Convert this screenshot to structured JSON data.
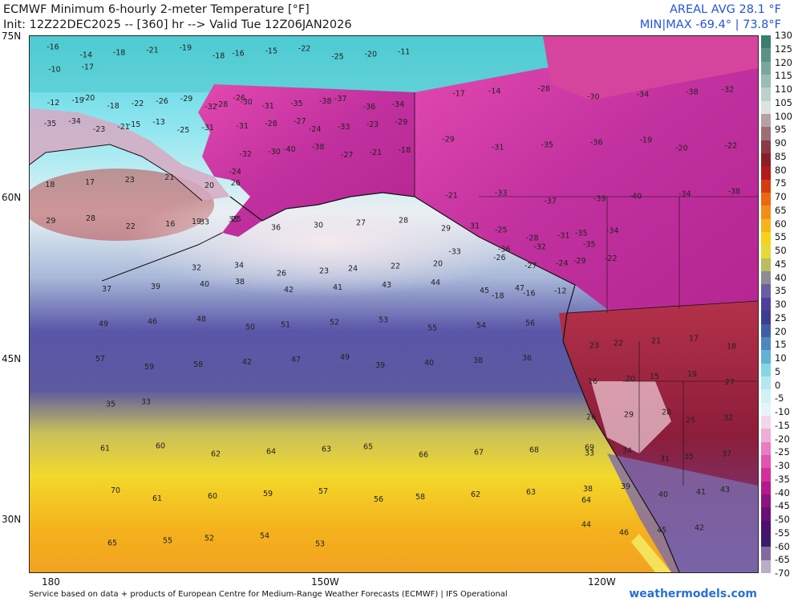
{
  "header": {
    "title": "ECMWF Minimum 6-hourly 2-meter Temperature [°F]",
    "init": "Init: 12Z22DEC2025 -- [360] hr --> Valid Tue 12Z06JAN2026",
    "areal_avg": "AREAL AVG 28.1 °F",
    "min_max": "MIN|MAX -69.4° | 73.8°F"
  },
  "lat_labels": [
    "75N",
    "60N",
    "45N",
    "30N"
  ],
  "lon_labels": [
    "180",
    "150W",
    "120W"
  ],
  "scale_labels": [
    "130",
    "125",
    "120",
    "115",
    "110",
    "105",
    "100",
    "95",
    "90",
    "85",
    "80",
    "75",
    "70",
    "65",
    "60",
    "55",
    "50",
    "45",
    "40",
    "35",
    "30",
    "25",
    "20",
    "15",
    "10",
    "5",
    "0",
    "-5",
    "-10",
    "-15",
    "-20",
    "-25",
    "-30",
    "-35",
    "-40",
    "-45",
    "-50",
    "-55",
    "-60",
    "-65",
    "-70"
  ],
  "scale_colors": [
    "#3d7d6f",
    "#5a9386",
    "#7aa79d",
    "#9bbcb6",
    "#bcd0cc",
    "#dde3e1",
    "#b6a0a6",
    "#9b6f78",
    "#8a3b46",
    "#8b1c2a",
    "#b21a1a",
    "#d83a12",
    "#ec6712",
    "#f28e18",
    "#f6b41a",
    "#f7d21d",
    "#e6d83a",
    "#b9bd5f",
    "#8d8c95",
    "#6a5fa3",
    "#4e3f9d",
    "#3d3d92",
    "#3f5ea6",
    "#4f86bd",
    "#63b2d3",
    "#86d6e6",
    "#b4e7ef",
    "#d2f1f5",
    "#e6f4f7",
    "#f2d7e9",
    "#eeaed7",
    "#e97dc1",
    "#e154ad",
    "#d42f9a",
    "#b31a8b",
    "#8d137f",
    "#6a0f76",
    "#4d106e",
    "#3c1a6a",
    "#7f6a9b",
    "#b9adc8"
  ],
  "footer": {
    "credit": "Service based on data + products of European Centre for Medium-Range Weather Forecasts (ECMWF) | IFS Operational",
    "brand": "weathermodels.com"
  },
  "map_values": {
    "arctic_nw": [
      "-16",
      "-14",
      "-18",
      "-21",
      "-19",
      "-18",
      "-16",
      "-15",
      "-22",
      "-25",
      "-20",
      "-11",
      "-10",
      "-17"
    ],
    "siberia_bering": [
      "-12",
      "-19",
      "-20",
      "-18",
      "-22",
      "-26",
      "-29",
      "-32",
      "-28",
      "-30",
      "-35",
      "-34",
      "-23",
      "-21",
      "-15",
      "-13",
      "-25",
      "-31"
    ],
    "alaska": [
      "-26",
      "-31",
      "-35",
      "-38",
      "-37",
      "-36",
      "-34",
      "-31",
      "-28",
      "-27",
      "-24",
      "-33",
      "-23",
      "-29",
      "-32",
      "-30",
      "-40",
      "-38",
      "-27",
      "-21",
      "-18",
      "-24"
    ],
    "canada": [
      "-17",
      "-14",
      "-28",
      "-30",
      "-34",
      "-38",
      "-32",
      "-29",
      "-31",
      "-35",
      "-36",
      "-19",
      "-20",
      "-22",
      "-21",
      "-33",
      "-37",
      "-39",
      "-40",
      "-34",
      "-38",
      "-33",
      "-36",
      "-32",
      "-35"
    ],
    "western_na": [
      "-25",
      "-28",
      "-31",
      "-35",
      "-34",
      "-26",
      "-27",
      "-24",
      "-29",
      "-22",
      "-18",
      "-16",
      "-12"
    ],
    "bering_sea": [
      "18",
      "17",
      "23",
      "21",
      "20",
      "26",
      "29",
      "28",
      "22",
      "16",
      "19",
      "25"
    ],
    "gulf_alaska": [
      "33",
      "35",
      "36",
      "30",
      "27",
      "28",
      "29",
      "31",
      "32",
      "34",
      "26",
      "23",
      "24",
      "22",
      "20"
    ],
    "pacific_mid": [
      "37",
      "39",
      "40",
      "38",
      "42",
      "41",
      "43",
      "44",
      "45",
      "47",
      "49",
      "46",
      "48",
      "50",
      "51",
      "52",
      "53",
      "55",
      "54",
      "56",
      "57",
      "59",
      "58",
      "42",
      "47",
      "49",
      "39",
      "40",
      "38",
      "36",
      "35",
      "33"
    ],
    "pacific_south": [
      "61",
      "60",
      "62",
      "64",
      "63",
      "65",
      "66",
      "67",
      "68",
      "69",
      "70",
      "61",
      "60",
      "59",
      "57",
      "56",
      "58",
      "62",
      "63",
      "64",
      "65",
      "55",
      "52",
      "54",
      "53"
    ],
    "western_us": [
      "23",
      "22",
      "21",
      "17",
      "18",
      "16",
      "20",
      "15",
      "19",
      "27",
      "26",
      "29",
      "28",
      "25",
      "32",
      "33",
      "34",
      "31",
      "35",
      "37",
      "38",
      "39",
      "40",
      "41",
      "43",
      "44",
      "46",
      "45",
      "42"
    ]
  }
}
